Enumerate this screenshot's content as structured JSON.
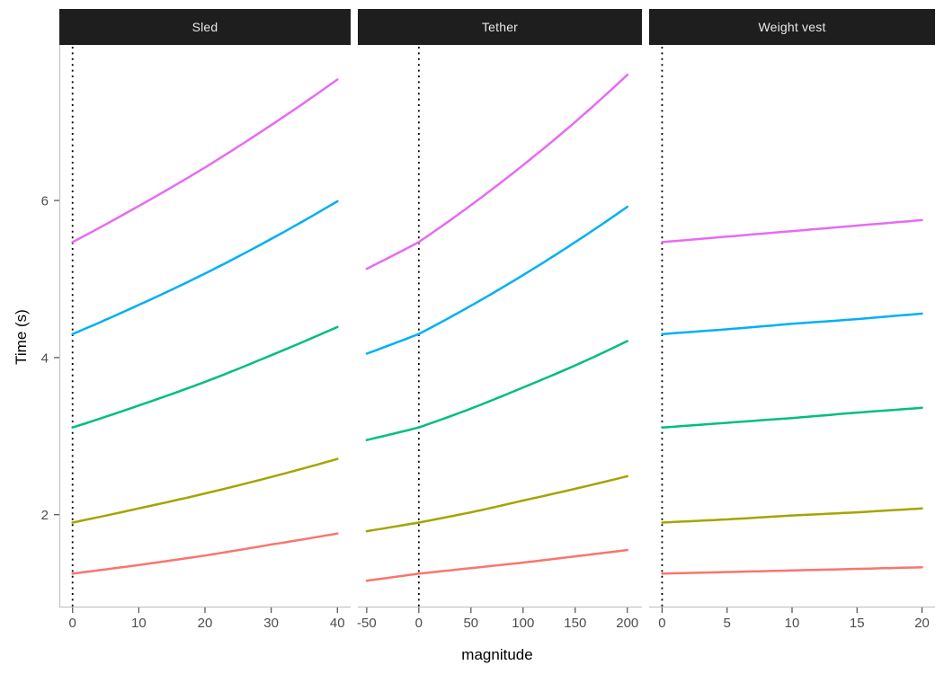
{
  "chart_data": {
    "type": "line",
    "title": "",
    "xlabel": "magnitude",
    "ylabel": "Time (s)",
    "legend": "none",
    "grid": "off",
    "y_ticks": [
      2,
      4,
      6
    ],
    "ylim": [
      0.83,
      7.98
    ],
    "reference_line": {
      "style": "dotted",
      "color": "#000000",
      "x": 0
    },
    "series_colors": [
      "#F8766D",
      "#A3A500",
      "#00BF7D",
      "#00B0F6",
      "#E76BF3"
    ],
    "facets": [
      {
        "label": "Sled",
        "x_ticks": [
          0,
          10,
          20,
          30,
          40
        ],
        "xlim": [
          -2,
          42
        ],
        "x": [
          0,
          10,
          20,
          30,
          40
        ],
        "series": [
          {
            "color": "#F8766D",
            "values": [
              1.25,
              1.36,
              1.48,
              1.62,
              1.76
            ]
          },
          {
            "color": "#A3A500",
            "values": [
              1.9,
              2.08,
              2.27,
              2.48,
              2.71
            ]
          },
          {
            "color": "#00BF7D",
            "values": [
              3.11,
              3.39,
              3.69,
              4.03,
              4.39
            ]
          },
          {
            "color": "#00B0F6",
            "values": [
              4.3,
              4.67,
              5.07,
              5.51,
              5.99
            ]
          },
          {
            "color": "#E76BF3",
            "values": [
              5.47,
              5.93,
              6.42,
              6.96,
              7.54
            ]
          }
        ]
      },
      {
        "label": "Tether",
        "x_ticks": [
          -50,
          0,
          50,
          100,
          150,
          200
        ],
        "xlim": [
          -58.5,
          214
        ],
        "x": [
          -50,
          0,
          50,
          100,
          150,
          200
        ],
        "series": [
          {
            "color": "#F8766D",
            "values": [
              1.16,
              1.25,
              1.32,
              1.39,
              1.47,
              1.55
            ]
          },
          {
            "color": "#A3A500",
            "values": [
              1.79,
              1.9,
              2.03,
              2.18,
              2.33,
              2.49
            ]
          },
          {
            "color": "#00BF7D",
            "values": [
              2.95,
              3.11,
              3.35,
              3.62,
              3.9,
              4.21
            ]
          },
          {
            "color": "#00B0F6",
            "values": [
              4.05,
              4.3,
              4.66,
              5.05,
              5.47,
              5.92
            ]
          },
          {
            "color": "#E76BF3",
            "values": [
              5.13,
              5.47,
              5.94,
              6.45,
              7.0,
              7.6
            ]
          }
        ]
      },
      {
        "label": "Weight vest",
        "x_ticks": [
          0,
          5,
          10,
          15,
          20
        ],
        "xlim": [
          -1,
          21
        ],
        "x": [
          0,
          5,
          10,
          15,
          20
        ],
        "series": [
          {
            "color": "#F8766D",
            "values": [
              1.25,
              1.27,
              1.29,
              1.31,
              1.33
            ]
          },
          {
            "color": "#A3A500",
            "values": [
              1.9,
              1.94,
              1.99,
              2.03,
              2.08
            ]
          },
          {
            "color": "#00BF7D",
            "values": [
              3.11,
              3.17,
              3.23,
              3.3,
              3.36
            ]
          },
          {
            "color": "#00B0F6",
            "values": [
              4.3,
              4.36,
              4.43,
              4.49,
              4.56
            ]
          },
          {
            "color": "#E76BF3",
            "values": [
              5.47,
              5.54,
              5.61,
              5.68,
              5.75
            ]
          }
        ]
      }
    ]
  }
}
